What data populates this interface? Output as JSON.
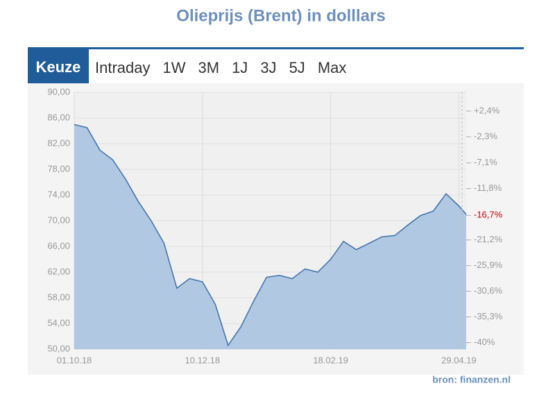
{
  "chart_data": {
    "type": "area",
    "title": "Olieprijs (Brent) in dolllars",
    "x": [
      "01.10.18",
      "08.10.18",
      "15.10.18",
      "22.10.18",
      "29.10.18",
      "05.11.18",
      "12.11.18",
      "19.11.18",
      "26.11.18",
      "03.12.18",
      "10.12.18",
      "17.12.18",
      "24.12.18",
      "31.12.18",
      "07.01.19",
      "14.01.19",
      "21.01.19",
      "28.01.19",
      "04.02.19",
      "11.02.19",
      "18.02.19",
      "25.02.19",
      "04.03.19",
      "11.03.19",
      "18.03.19",
      "25.03.19",
      "01.04.19",
      "08.04.19",
      "15.04.19",
      "22.04.19",
      "29.04.19",
      "03.05.19"
    ],
    "values": [
      85.0,
      84.5,
      81.0,
      79.5,
      76.5,
      73.0,
      70.0,
      66.5,
      59.5,
      61.0,
      60.5,
      57.0,
      50.6,
      53.5,
      57.5,
      61.2,
      61.5,
      61.0,
      62.5,
      62.0,
      64.0,
      66.8,
      65.5,
      66.5,
      67.5,
      67.7,
      69.3,
      70.8,
      71.5,
      74.2,
      72.3,
      71.0
    ],
    "color": "#3f6fa8",
    "fill": "#a9c3df",
    "xlim": [
      "01.10.18",
      "03.05.19"
    ],
    "xticks": [
      "01.10.18",
      "10.12.18",
      "18.02.19",
      "29.04.19"
    ],
    "ylim": [
      50,
      90
    ],
    "yticks": [
      {
        "value": 50,
        "label": "50,00"
      },
      {
        "value": 54,
        "label": "54,00"
      },
      {
        "value": 58,
        "label": "58,00"
      },
      {
        "value": 62,
        "label": "62,00"
      },
      {
        "value": 66,
        "label": "66,00"
      },
      {
        "value": 70,
        "label": "70,00"
      },
      {
        "value": 74,
        "label": "74,00"
      },
      {
        "value": 78,
        "label": "78,00"
      },
      {
        "value": 82,
        "label": "82,00"
      },
      {
        "value": 86,
        "label": "86,00"
      },
      {
        "value": 90,
        "label": "90,00"
      }
    ],
    "y2lim": [
      -41.2,
      5.83
    ],
    "y2ticks": [
      {
        "value": 2.4,
        "label": "+2,4%"
      },
      {
        "value": -2.3,
        "label": "-2,3%"
      },
      {
        "value": -7.1,
        "label": "-7,1%"
      },
      {
        "value": -11.8,
        "label": "-11,8%"
      },
      {
        "value": -16.7,
        "label": "-16,7%",
        "color": "#c00000"
      },
      {
        "value": -21.2,
        "label": "-21,2%"
      },
      {
        "value": -25.9,
        "label": "-25,9%"
      },
      {
        "value": -30.6,
        "label": "-30,6%"
      },
      {
        "value": -35.3,
        "label": "-35,3%"
      },
      {
        "value": -40,
        "label": "-40%"
      }
    ],
    "grid": true
  },
  "tabs": {
    "label": "Keuze",
    "options": [
      "Intraday",
      "1W",
      "3M",
      "1J",
      "3J",
      "5J",
      "Max"
    ]
  },
  "source": "bron: finanzen.nl"
}
